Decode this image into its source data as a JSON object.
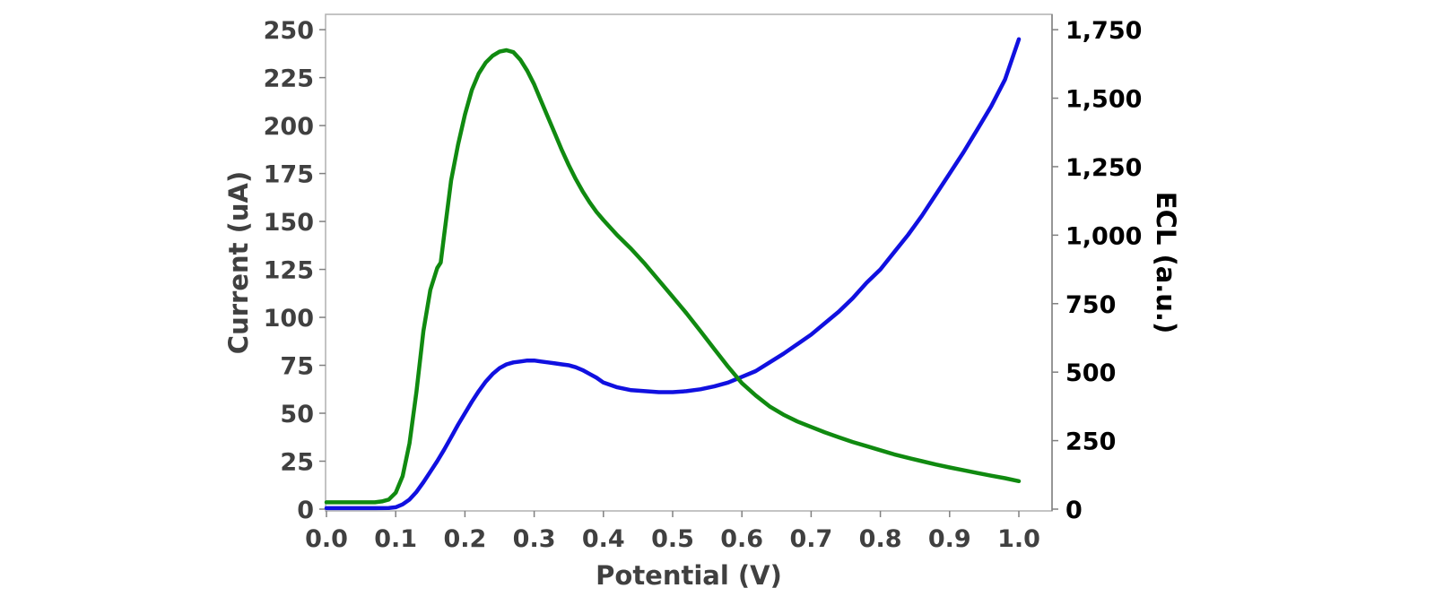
{
  "chart_data": {
    "type": "line",
    "xlabel": "Potential (V)",
    "ylabel": "Current (uA)",
    "y2label": "ECL (a.u.)",
    "xlim": [
      0.0,
      1.0
    ],
    "ylim": [
      0,
      258
    ],
    "y2lim": [
      0,
      1806
    ],
    "xticks": [
      "0.0",
      "0.1",
      "0.2",
      "0.3",
      "0.4",
      "0.5",
      "0.6",
      "0.7",
      "0.8",
      "0.9",
      "1.0"
    ],
    "yticks": [
      "0",
      "25",
      "50",
      "75",
      "100",
      "125",
      "150",
      "175",
      "200",
      "225",
      "250"
    ],
    "y2ticks": [
      "0",
      "250",
      "500",
      "750",
      "1,000",
      "1,250",
      "1,500",
      "1,750"
    ],
    "grid": false,
    "series": [
      {
        "axis": "left",
        "color": "#1010e0",
        "x": [
          0.0,
          0.07,
          0.09,
          0.1,
          0.11,
          0.12,
          0.13,
          0.14,
          0.15,
          0.16,
          0.17,
          0.18,
          0.19,
          0.2,
          0.21,
          0.22,
          0.23,
          0.24,
          0.25,
          0.26,
          0.27,
          0.28,
          0.29,
          0.3,
          0.31,
          0.32,
          0.33,
          0.34,
          0.35,
          0.36,
          0.37,
          0.38,
          0.39,
          0.4,
          0.42,
          0.44,
          0.46,
          0.48,
          0.5,
          0.52,
          0.54,
          0.56,
          0.58,
          0.6,
          0.62,
          0.64,
          0.66,
          0.68,
          0.7,
          0.72,
          0.74,
          0.76,
          0.78,
          0.8,
          0.82,
          0.84,
          0.86,
          0.88,
          0.9,
          0.92,
          0.94,
          0.96,
          0.98,
          1.0
        ],
        "values": [
          0.5,
          0.5,
          0.6,
          1.0,
          2.5,
          5.0,
          9.0,
          14.0,
          19.5,
          25.0,
          31.0,
          37.5,
          44.0,
          50.0,
          56.0,
          61.5,
          66.5,
          70.5,
          73.5,
          75.5,
          76.5,
          77.0,
          77.5,
          77.5,
          77.0,
          76.5,
          76.0,
          75.5,
          75.0,
          74.0,
          72.5,
          70.5,
          68.5,
          66.0,
          63.5,
          62.0,
          61.5,
          61.0,
          61.0,
          61.5,
          62.5,
          64.0,
          66.0,
          69.0,
          72.0,
          76.5,
          81.0,
          86.0,
          91.0,
          97.0,
          103.0,
          110.0,
          118.0,
          125.0,
          134.0,
          143.0,
          153.0,
          164.0,
          175.0,
          186.0,
          198.0,
          210.0,
          224.0,
          245.0
        ]
      },
      {
        "axis": "right",
        "color": "#108a10",
        "x": [
          0.0,
          0.07,
          0.08,
          0.09,
          0.1,
          0.11,
          0.12,
          0.13,
          0.14,
          0.15,
          0.16,
          0.165,
          0.17,
          0.18,
          0.19,
          0.2,
          0.21,
          0.22,
          0.23,
          0.24,
          0.25,
          0.26,
          0.27,
          0.28,
          0.29,
          0.3,
          0.31,
          0.32,
          0.33,
          0.34,
          0.35,
          0.36,
          0.37,
          0.38,
          0.39,
          0.4,
          0.42,
          0.44,
          0.46,
          0.48,
          0.5,
          0.52,
          0.54,
          0.56,
          0.58,
          0.6,
          0.62,
          0.64,
          0.66,
          0.68,
          0.7,
          0.72,
          0.74,
          0.76,
          0.78,
          0.8,
          0.82,
          0.84,
          0.86,
          0.88,
          0.9,
          0.92,
          0.94,
          0.96,
          0.98,
          1.0
        ],
        "values": [
          25,
          25,
          28,
          35,
          60,
          120,
          240,
          430,
          650,
          800,
          880,
          900,
          1000,
          1200,
          1330,
          1440,
          1530,
          1590,
          1630,
          1655,
          1670,
          1675,
          1668,
          1640,
          1600,
          1550,
          1490,
          1430,
          1370,
          1310,
          1255,
          1205,
          1160,
          1120,
          1085,
          1055,
          1000,
          950,
          895,
          835,
          775,
          715,
          650,
          585,
          520,
          460,
          415,
          375,
          345,
          320,
          300,
          280,
          262,
          245,
          230,
          215,
          200,
          187,
          175,
          163,
          152,
          142,
          132,
          122,
          113,
          102
        ]
      }
    ]
  }
}
